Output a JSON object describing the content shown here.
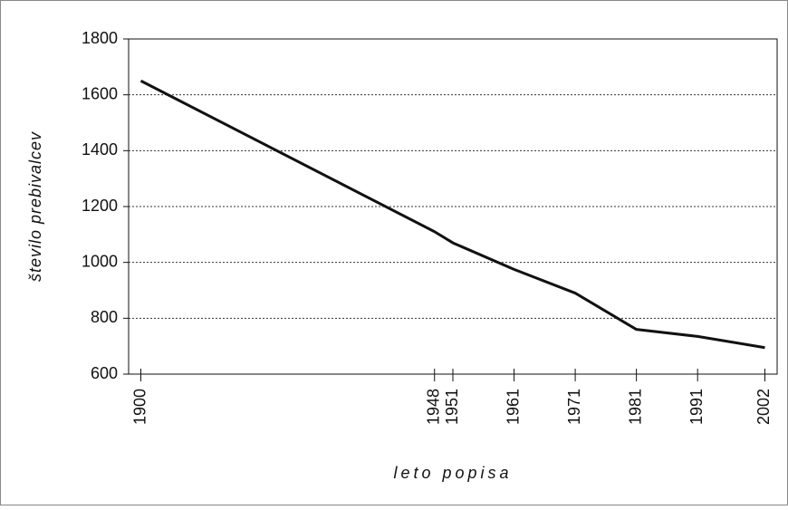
{
  "chart_data": {
    "type": "line",
    "x_label": "leto popisa",
    "y_label": "število prebivalcev",
    "x": [
      1900,
      1948,
      1951,
      1961,
      1971,
      1981,
      1991,
      2002
    ],
    "values": [
      1650,
      1110,
      1070,
      975,
      890,
      760,
      735,
      695
    ],
    "color": "#111111",
    "xlim": [
      1898,
      2004
    ],
    "xticks": [
      1900,
      1948,
      1951,
      1961,
      1971,
      1981,
      1991,
      2002
    ],
    "ylim": [
      600,
      1800
    ],
    "yticks": [
      600,
      800,
      1000,
      1200,
      1400,
      1600,
      1800
    ],
    "grid": true
  }
}
